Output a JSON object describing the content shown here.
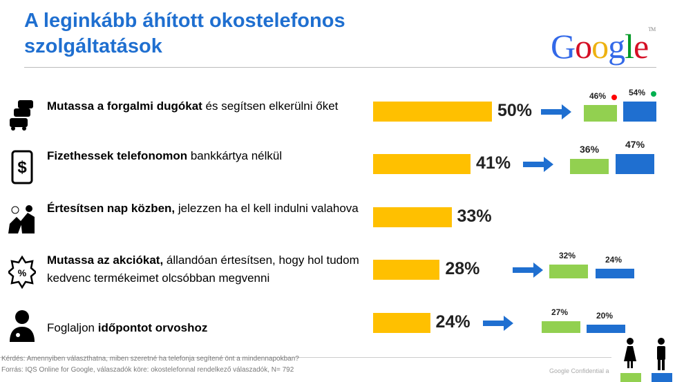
{
  "title_line1": "A leginkább áhított okostelefonos",
  "title_line2": "szolgáltatások",
  "logo": "Google",
  "colors": {
    "total": "#FFC000",
    "female": "#92D050",
    "male": "#1F6FD0",
    "title": "#1F6FD0"
  },
  "chart_data": {
    "type": "bar",
    "categories": [
      {
        "bold": "Mutassa a forgalmi dugókat",
        "rest": " és segítsen elkerülni őket",
        "icon": "traffic-cars-icon"
      },
      {
        "bold": "Fizethessek telefonomon",
        "rest": " bankkártya nélkül",
        "icon": "phone-dollar-icon"
      },
      {
        "bold": "Értesítsen nap közben,",
        "rest": " jelezzen ha el kell indulni valahova",
        "icon": "people-running-icon"
      },
      {
        "bold": "Mutassa az akciókat,",
        "rest": " állandóan értesítsen, hogy hol tudom kedvenc termékeimet olcsóbban megvenni",
        "icon": "discount-badge-icon"
      },
      {
        "pre": "Foglaljon ",
        "bold": "időpontot orvoshoz",
        "rest": "",
        "icon": "doctor-icon"
      }
    ],
    "series": [
      {
        "name": "total",
        "values": [
          50,
          41,
          33,
          28,
          24
        ],
        "labels": [
          "50%",
          "41%",
          "33%",
          "28%",
          "24%"
        ]
      },
      {
        "name": "female",
        "values": [
          46,
          36,
          null,
          32,
          27
        ],
        "labels": [
          "46%",
          "36%",
          "",
          "32%",
          "27%"
        ]
      },
      {
        "name": "male",
        "values": [
          54,
          47,
          null,
          24,
          20
        ],
        "labels": [
          "54%",
          "47%",
          "",
          "24%",
          "20%"
        ]
      }
    ],
    "markers": {
      "female_row1": "red-dot",
      "male_row1": "green-dot"
    },
    "legend": {
      "female_icon": "woman-icon",
      "male_icon": "man-icon",
      "placement": "bottom-right"
    }
  },
  "footer": {
    "question": "Kérdés: Amennyiben választhatna, miben szeretné ha telefonja segítené önt a mindennapokban?",
    "source": "Forrás: IQS Online for Google, válaszadók köre: okostelefonnal rendelkező válaszadók, N= 792",
    "confidential": "Google Confidential a"
  }
}
